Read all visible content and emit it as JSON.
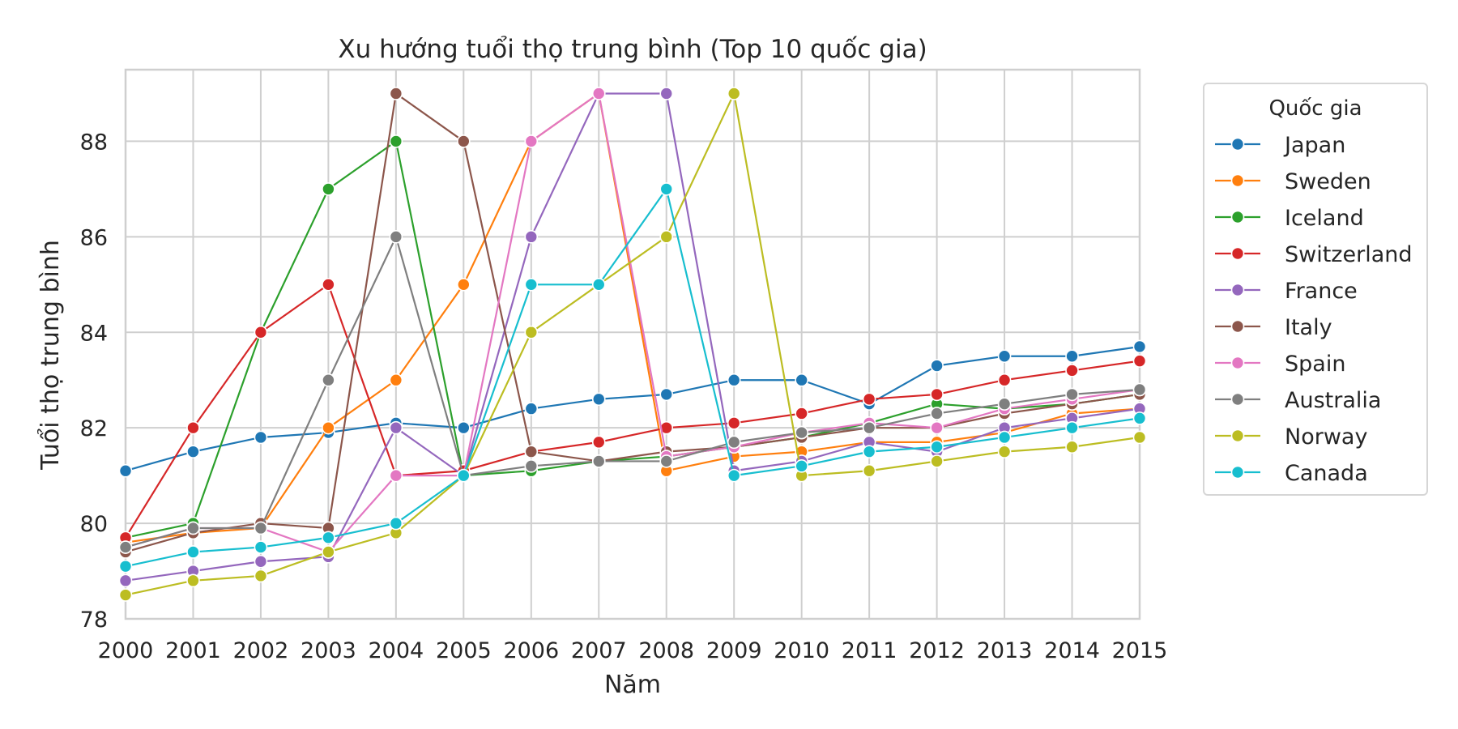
{
  "chart_data": {
    "type": "line",
    "title": "Xu hướng tuổi thọ trung bình (Top 10 quốc gia)",
    "xlabel": "Năm",
    "ylabel": "Tuổi thọ trung bình",
    "x": [
      2000,
      2001,
      2002,
      2003,
      2004,
      2005,
      2006,
      2007,
      2008,
      2009,
      2010,
      2011,
      2012,
      2013,
      2014,
      2015
    ],
    "xlim": [
      2000,
      2015
    ],
    "ylim": [
      78,
      89.5
    ],
    "yticks": [
      78,
      80,
      82,
      84,
      86,
      88
    ],
    "grid": true,
    "legend": {
      "title": "Quốc gia",
      "placement": "outside-right"
    },
    "series": [
      {
        "name": "Japan",
        "color": "#1f77b4",
        "values": [
          81.1,
          81.5,
          81.8,
          81.9,
          82.1,
          82.0,
          82.4,
          82.6,
          82.7,
          83.0,
          83.0,
          82.5,
          83.3,
          83.5,
          83.5,
          83.7
        ]
      },
      {
        "name": "Sweden",
        "color": "#ff7f0e",
        "values": [
          79.6,
          79.8,
          79.9,
          82.0,
          83.0,
          85.0,
          88.0,
          89.0,
          81.1,
          81.4,
          81.5,
          81.7,
          81.7,
          81.9,
          82.3,
          82.4
        ]
      },
      {
        "name": "Iceland",
        "color": "#2ca02c",
        "values": [
          79.7,
          80.0,
          84.0,
          87.0,
          88.0,
          81.0,
          81.1,
          81.3,
          81.4,
          81.6,
          81.8,
          82.1,
          82.5,
          82.4,
          82.5,
          82.7
        ]
      },
      {
        "name": "Switzerland",
        "color": "#d62728",
        "values": [
          79.7,
          82.0,
          84.0,
          85.0,
          81.0,
          81.1,
          81.5,
          81.7,
          82.0,
          82.1,
          82.3,
          82.6,
          82.7,
          83.0,
          83.2,
          83.4
        ]
      },
      {
        "name": "France",
        "color": "#9467bd",
        "values": [
          78.8,
          79.0,
          79.2,
          79.3,
          82.0,
          81.0,
          86.0,
          89.0,
          89.0,
          81.1,
          81.3,
          81.7,
          81.5,
          82.0,
          82.2,
          82.4
        ]
      },
      {
        "name": "Italy",
        "color": "#8c564b",
        "values": [
          79.4,
          79.8,
          80.0,
          79.9,
          89.0,
          88.0,
          81.5,
          81.3,
          81.5,
          81.6,
          81.8,
          82.0,
          82.0,
          82.3,
          82.5,
          82.7
        ]
      },
      {
        "name": "Spain",
        "color": "#e377c2",
        "values": [
          79.5,
          79.9,
          79.9,
          79.4,
          81.0,
          81.0,
          88.0,
          89.0,
          81.4,
          81.6,
          81.9,
          82.1,
          82.0,
          82.4,
          82.6,
          82.8
        ]
      },
      {
        "name": "Australia",
        "color": "#7f7f7f",
        "values": [
          79.5,
          79.9,
          79.9,
          83.0,
          86.0,
          81.0,
          81.2,
          81.3,
          81.3,
          81.7,
          81.9,
          82.0,
          82.3,
          82.5,
          82.7,
          82.8
        ]
      },
      {
        "name": "Norway",
        "color": "#bcbd22",
        "values": [
          78.5,
          78.8,
          78.9,
          79.4,
          79.8,
          81.0,
          84.0,
          85.0,
          86.0,
          89.0,
          81.0,
          81.1,
          81.3,
          81.5,
          81.6,
          81.8
        ]
      },
      {
        "name": "Canada",
        "color": "#17becf",
        "values": [
          79.1,
          79.4,
          79.5,
          79.7,
          80.0,
          81.0,
          85.0,
          85.0,
          87.0,
          81.0,
          81.2,
          81.5,
          81.6,
          81.8,
          82.0,
          82.2
        ]
      }
    ]
  }
}
